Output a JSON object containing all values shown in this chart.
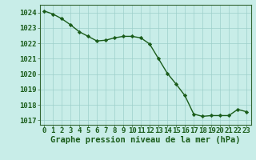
{
  "x": [
    0,
    1,
    2,
    3,
    4,
    5,
    6,
    7,
    8,
    9,
    10,
    11,
    12,
    13,
    14,
    15,
    16,
    17,
    18,
    19,
    20,
    21,
    22,
    23
  ],
  "y": [
    1024.1,
    1023.9,
    1023.6,
    1023.2,
    1022.75,
    1022.45,
    1022.15,
    1022.2,
    1022.35,
    1022.45,
    1022.45,
    1022.35,
    1021.95,
    1021.0,
    1020.05,
    1019.35,
    1018.6,
    1017.4,
    1017.25,
    1017.3,
    1017.3,
    1017.3,
    1017.7,
    1017.55
  ],
  "xlabel": "Graphe pression niveau de la mer (hPa)",
  "ylim": [
    1016.7,
    1024.5
  ],
  "xlim": [
    -0.5,
    23.5
  ],
  "yticks": [
    1017,
    1018,
    1019,
    1020,
    1021,
    1022,
    1023,
    1024
  ],
  "xticks": [
    0,
    1,
    2,
    3,
    4,
    5,
    6,
    7,
    8,
    9,
    10,
    11,
    12,
    13,
    14,
    15,
    16,
    17,
    18,
    19,
    20,
    21,
    22,
    23
  ],
  "line_color": "#1a5c1a",
  "marker_color": "#1a5c1a",
  "bg_color": "#c8ede8",
  "grid_color": "#9ecfca",
  "tick_label_color": "#1a5c1a",
  "xlabel_color": "#1a5c1a",
  "border_color": "#336633",
  "xlabel_fontsize": 7.5,
  "tick_fontsize": 6.5
}
